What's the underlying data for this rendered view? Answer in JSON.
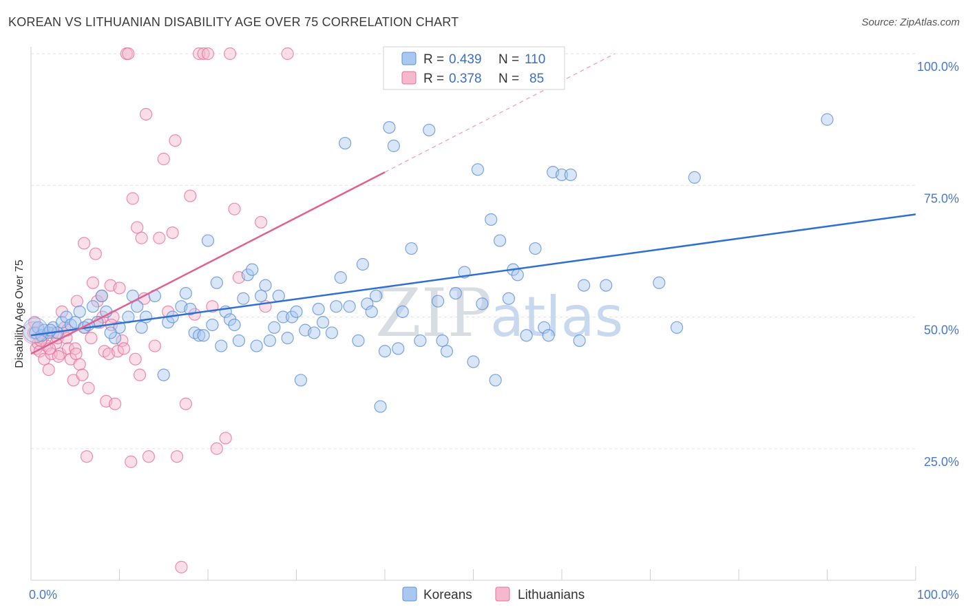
{
  "title": "KOREAN VS LITHUANIAN DISABILITY AGE OVER 75 CORRELATION CHART",
  "source": "Source: ZipAtlas.com",
  "watermark": {
    "zip": "ZIP",
    "atlas": "atlas"
  },
  "colors": {
    "korean": "#5b8fd9",
    "korean_fill": "#a9c8f0",
    "lithuanian": "#e8709a",
    "lithuanian_fill": "#f5b8cc",
    "axis_label": "#4a78c8",
    "grid": "#e2e2e2"
  },
  "legend": {
    "rows": [
      {
        "r_label": "R =",
        "r_value": "0.439",
        "n_label": "N =",
        "n_value": "110"
      },
      {
        "r_label": "R =",
        "r_value": "0.378",
        "n_label": "N =",
        "n_value": "85"
      }
    ]
  },
  "bottom_legend": [
    "Koreans",
    "Lithuanians"
  ],
  "chart_data": {
    "type": "scatter",
    "title": "KOREAN VS LITHUANIAN DISABILITY AGE OVER 75 CORRELATION CHART",
    "xlabel": "",
    "ylabel": "Disability Age Over 75",
    "xlim": [
      0,
      100
    ],
    "ylim": [
      0,
      100
    ],
    "x_tick_labels": [
      "0.0%",
      "100.0%"
    ],
    "y_ticks": [
      25,
      50,
      75,
      100
    ],
    "y_tick_labels": [
      "25.0%",
      "50.0%",
      "75.0%",
      "100.0%"
    ],
    "grid": true,
    "legend_position": "top-center",
    "series": [
      {
        "name": "Koreans",
        "r": 0.439,
        "n": 110,
        "trend": {
          "x": [
            0,
            100
          ],
          "y": [
            46.5,
            69.5
          ]
        },
        "points": [
          [
            0.5,
            47
          ],
          [
            0.8,
            48
          ],
          [
            1.2,
            46.5
          ],
          [
            1.5,
            47.5
          ],
          [
            2,
            47
          ],
          [
            2.5,
            48
          ],
          [
            3,
            47
          ],
          [
            3.5,
            49
          ],
          [
            4,
            50
          ],
          [
            4.5,
            48.5
          ],
          [
            5,
            49
          ],
          [
            5.5,
            51
          ],
          [
            6,
            48
          ],
          [
            7,
            52
          ],
          [
            7.5,
            49
          ],
          [
            8,
            54
          ],
          [
            8.5,
            51
          ],
          [
            9.5,
            46
          ],
          [
            10,
            48
          ],
          [
            11,
            50
          ],
          [
            11.5,
            54
          ],
          [
            12.5,
            48
          ],
          [
            13,
            50
          ],
          [
            14,
            54
          ],
          [
            15,
            39
          ],
          [
            15.5,
            49
          ],
          [
            16,
            50
          ],
          [
            17,
            52
          ],
          [
            17.5,
            54.5
          ],
          [
            18,
            51.5
          ],
          [
            18.5,
            47
          ],
          [
            19,
            46.5
          ],
          [
            19.5,
            46.5
          ],
          [
            20,
            64.5
          ],
          [
            20.5,
            48.5
          ],
          [
            21,
            56.5
          ],
          [
            21.5,
            44.5
          ],
          [
            22,
            51
          ],
          [
            22.5,
            49.5
          ],
          [
            23,
            48.5
          ],
          [
            23.5,
            45.5
          ],
          [
            24,
            53.5
          ],
          [
            24.5,
            58
          ],
          [
            25,
            59
          ],
          [
            25.5,
            44.5
          ],
          [
            26,
            54
          ],
          [
            27,
            45.5
          ],
          [
            27.5,
            48
          ],
          [
            28,
            54
          ],
          [
            28.5,
            50
          ],
          [
            29,
            46
          ],
          [
            29.5,
            50
          ],
          [
            30,
            51
          ],
          [
            30.5,
            38
          ],
          [
            31,
            47.5
          ],
          [
            32,
            47
          ],
          [
            32.5,
            51.5
          ],
          [
            33,
            49
          ],
          [
            34,
            47
          ],
          [
            34.5,
            52
          ],
          [
            35,
            57.5
          ],
          [
            35.5,
            83
          ],
          [
            36,
            52
          ],
          [
            37,
            45.5
          ],
          [
            37.5,
            60
          ],
          [
            38,
            52.5
          ],
          [
            38.5,
            51
          ],
          [
            39,
            54
          ],
          [
            39.5,
            33
          ],
          [
            40,
            43.5
          ],
          [
            40.5,
            86
          ],
          [
            41,
            82.5
          ],
          [
            41.5,
            44
          ],
          [
            42,
            51
          ],
          [
            43,
            63
          ],
          [
            44,
            45.5
          ],
          [
            45,
            85.5
          ],
          [
            46,
            53
          ],
          [
            46.5,
            45.5
          ],
          [
            47,
            43.5
          ],
          [
            48,
            54.5
          ],
          [
            49,
            58.5
          ],
          [
            50,
            41.5
          ],
          [
            50.5,
            78
          ],
          [
            51,
            52.5
          ],
          [
            52,
            68.5
          ],
          [
            52.5,
            38
          ],
          [
            53,
            64.5
          ],
          [
            54,
            53.5
          ],
          [
            54.5,
            59
          ],
          [
            55,
            58
          ],
          [
            56,
            46.5
          ],
          [
            57,
            63
          ],
          [
            58,
            48
          ],
          [
            58.5,
            46.5
          ],
          [
            59,
            77.5
          ],
          [
            60,
            77
          ],
          [
            61,
            77
          ],
          [
            62,
            45.5
          ],
          [
            62.5,
            56
          ],
          [
            65,
            56
          ],
          [
            71,
            56.5
          ],
          [
            73,
            48
          ],
          [
            75,
            76.5
          ],
          [
            90,
            87.5
          ],
          [
            2.2,
            47.5
          ],
          [
            6.5,
            48.5
          ],
          [
            9,
            47
          ],
          [
            12,
            52
          ],
          [
            26.5,
            56
          ]
        ]
      },
      {
        "name": "Lithuanians",
        "r": 0.378,
        "n": 85,
        "trend": {
          "x": [
            0,
            40
          ],
          "y": [
            43,
            77.5
          ]
        },
        "trend_dashed": {
          "x": [
            40,
            66
          ],
          "y": [
            77.5,
            100
          ]
        },
        "points": [
          [
            0.3,
            47
          ],
          [
            0.6,
            44
          ],
          [
            0.8,
            45
          ],
          [
            1,
            43.5
          ],
          [
            1.3,
            46
          ],
          [
            1.5,
            42
          ],
          [
            1.8,
            44.5
          ],
          [
            2,
            40
          ],
          [
            2.3,
            43
          ],
          [
            2.5,
            47
          ],
          [
            2.8,
            45
          ],
          [
            3,
            46
          ],
          [
            3.3,
            43
          ],
          [
            3.5,
            51
          ],
          [
            3.8,
            48
          ],
          [
            4,
            46
          ],
          [
            4.2,
            44
          ],
          [
            4.5,
            42
          ],
          [
            4.8,
            38
          ],
          [
            5,
            44
          ],
          [
            5.2,
            53
          ],
          [
            5.5,
            41
          ],
          [
            5.8,
            39
          ],
          [
            6,
            64
          ],
          [
            6.3,
            23.5
          ],
          [
            6.5,
            36.5
          ],
          [
            6.8,
            46
          ],
          [
            7,
            56.5
          ],
          [
            7.3,
            62
          ],
          [
            7.5,
            53
          ],
          [
            7.8,
            49
          ],
          [
            8,
            54
          ],
          [
            8.3,
            43.5
          ],
          [
            8.5,
            34
          ],
          [
            8.8,
            43
          ],
          [
            9,
            56
          ],
          [
            9.3,
            50
          ],
          [
            9.5,
            33.5
          ],
          [
            9.8,
            43.5
          ],
          [
            10,
            55.5
          ],
          [
            10.3,
            45.5
          ],
          [
            10.5,
            44
          ],
          [
            10.8,
            100
          ],
          [
            11,
            100
          ],
          [
            11.3,
            22.5
          ],
          [
            11.5,
            72.5
          ],
          [
            11.8,
            42
          ],
          [
            12,
            67
          ],
          [
            12.3,
            39
          ],
          [
            12.5,
            65
          ],
          [
            12.8,
            53.5
          ],
          [
            13,
            88.5
          ],
          [
            13.3,
            23.5
          ],
          [
            14,
            44.5
          ],
          [
            14.5,
            65
          ],
          [
            15,
            80
          ],
          [
            15.5,
            51
          ],
          [
            16,
            66
          ],
          [
            16.3,
            83.5
          ],
          [
            16.5,
            23.5
          ],
          [
            17,
            2.5
          ],
          [
            17.5,
            33.5
          ],
          [
            18,
            73
          ],
          [
            18.5,
            50.5
          ],
          [
            19,
            100
          ],
          [
            19.5,
            100
          ],
          [
            20,
            100
          ],
          [
            20.5,
            52
          ],
          [
            21,
            25
          ],
          [
            22,
            27
          ],
          [
            22.5,
            100
          ],
          [
            23,
            70.5
          ],
          [
            23.5,
            57.5
          ],
          [
            26,
            68
          ],
          [
            26.5,
            52
          ],
          [
            29,
            100
          ],
          [
            0.4,
            49
          ],
          [
            1.1,
            45.5
          ],
          [
            2.1,
            44
          ],
          [
            3.1,
            42.5
          ],
          [
            4.1,
            47.5
          ],
          [
            5.1,
            43
          ],
          [
            6.1,
            48
          ],
          [
            8.1,
            50
          ],
          [
            9.1,
            48.5
          ]
        ]
      }
    ]
  }
}
